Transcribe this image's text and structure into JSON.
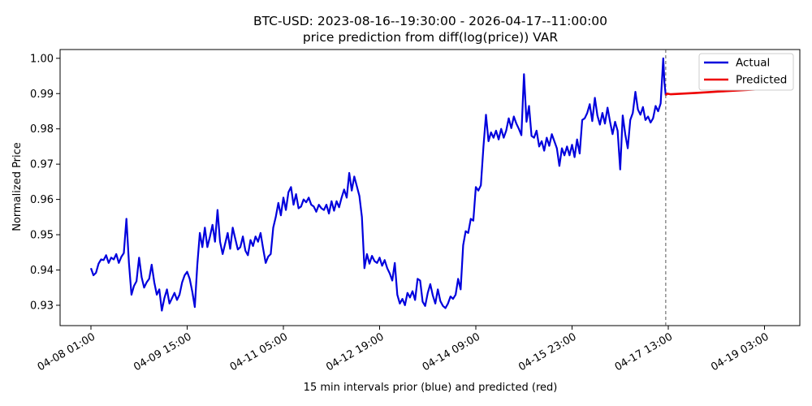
{
  "chart_data": {
    "type": "line",
    "title": "BTC-USD: 2023-08-16--19:30:00 - 2026-04-17--11:00:00",
    "subtitle": "price prediction from diff(log(price)) VAR",
    "xlabel": "15 min intervals prior (blue) and predicted (red)",
    "ylabel": "Normalized Price",
    "ylim": [
      0.9245,
      1.0035
    ],
    "yticks": [
      "0.93",
      "0.94",
      "0.95",
      "0.96",
      "0.97",
      "0.98",
      "0.99",
      "1.00"
    ],
    "xticks": [
      "04-08 01:00",
      "04-09 15:00",
      "04-11 05:00",
      "04-12 19:00",
      "04-14 09:00",
      "04-15 23:00",
      "04-17 13:00",
      "04-19 03:00"
    ],
    "grid": false,
    "legend_position": "top-right",
    "forecast_marker_x": "04-17 12:00",
    "series": [
      {
        "name": "Actual",
        "color": "#0000dd",
        "points": [
          [
            "04-08 01:00",
            0.9405
          ],
          [
            "04-08 02:00",
            0.9385
          ],
          [
            "04-08 03:00",
            0.9392
          ],
          [
            "04-08 04:00",
            0.9418
          ],
          [
            "04-08 05:00",
            0.943
          ],
          [
            "04-08 06:00",
            0.9428
          ],
          [
            "04-08 07:00",
            0.9442
          ],
          [
            "04-08 08:00",
            0.942
          ],
          [
            "04-08 09:00",
            0.9435
          ],
          [
            "04-08 10:00",
            0.943
          ],
          [
            "04-08 11:00",
            0.9445
          ],
          [
            "04-08 12:00",
            0.942
          ],
          [
            "04-08 13:00",
            0.9437
          ],
          [
            "04-08 14:00",
            0.9448
          ],
          [
            "04-08 15:00",
            0.9545
          ],
          [
            "04-08 16:00",
            0.942
          ],
          [
            "04-08 17:00",
            0.933
          ],
          [
            "04-08 18:00",
            0.9355
          ],
          [
            "04-08 19:00",
            0.9368
          ],
          [
            "04-08 20:00",
            0.9435
          ],
          [
            "04-08 21:00",
            0.938
          ],
          [
            "04-08 22:00",
            0.935
          ],
          [
            "04-08 23:00",
            0.9365
          ],
          [
            "04-09 00:00",
            0.9375
          ],
          [
            "04-09 01:00",
            0.9415
          ],
          [
            "04-09 02:00",
            0.9365
          ],
          [
            "04-09 03:00",
            0.933
          ],
          [
            "04-09 04:00",
            0.9345
          ],
          [
            "04-09 05:00",
            0.9285
          ],
          [
            "04-09 06:00",
            0.932
          ],
          [
            "04-09 07:00",
            0.9345
          ],
          [
            "04-09 08:00",
            0.9305
          ],
          [
            "04-09 09:00",
            0.932
          ],
          [
            "04-09 10:00",
            0.9335
          ],
          [
            "04-09 11:00",
            0.9315
          ],
          [
            "04-09 12:00",
            0.933
          ],
          [
            "04-09 13:00",
            0.9365
          ],
          [
            "04-09 14:00",
            0.9385
          ],
          [
            "04-09 15:00",
            0.9395
          ],
          [
            "04-09 16:00",
            0.9375
          ],
          [
            "04-09 17:00",
            0.934
          ],
          [
            "04-09 18:00",
            0.9295
          ],
          [
            "04-09 19:00",
            0.9415
          ],
          [
            "04-09 20:00",
            0.9505
          ],
          [
            "04-09 21:00",
            0.9465
          ],
          [
            "04-09 22:00",
            0.952
          ],
          [
            "04-09 23:00",
            0.9465
          ],
          [
            "04-10 00:00",
            0.9495
          ],
          [
            "04-10 01:00",
            0.9528
          ],
          [
            "04-10 02:00",
            0.948
          ],
          [
            "04-10 03:00",
            0.957
          ],
          [
            "04-10 04:00",
            0.948
          ],
          [
            "04-10 05:00",
            0.9445
          ],
          [
            "04-10 06:00",
            0.9475
          ],
          [
            "04-10 07:00",
            0.9505
          ],
          [
            "04-10 08:00",
            0.946
          ],
          [
            "04-10 09:00",
            0.952
          ],
          [
            "04-10 10:00",
            0.9488
          ],
          [
            "04-10 11:00",
            0.9458
          ],
          [
            "04-10 12:00",
            0.9465
          ],
          [
            "04-10 13:00",
            0.9495
          ],
          [
            "04-10 14:00",
            0.9455
          ],
          [
            "04-10 15:00",
            0.9442
          ],
          [
            "04-10 16:00",
            0.9485
          ],
          [
            "04-10 17:00",
            0.9468
          ],
          [
            "04-10 18:00",
            0.9495
          ],
          [
            "04-10 19:00",
            0.948
          ],
          [
            "04-10 20:00",
            0.9505
          ],
          [
            "04-10 21:00",
            0.946
          ],
          [
            "04-10 22:00",
            0.942
          ],
          [
            "04-10 23:00",
            0.9438
          ],
          [
            "04-11 00:00",
            0.9445
          ],
          [
            "04-11 01:00",
            0.952
          ],
          [
            "04-11 02:00",
            0.955
          ],
          [
            "04-11 03:00",
            0.959
          ],
          [
            "04-11 04:00",
            0.9555
          ],
          [
            "04-11 05:00",
            0.9605
          ],
          [
            "04-11 06:00",
            0.957
          ],
          [
            "04-11 07:00",
            0.962
          ],
          [
            "04-11 08:00",
            0.9635
          ],
          [
            "04-11 09:00",
            0.9585
          ],
          [
            "04-11 10:00",
            0.9615
          ],
          [
            "04-11 11:00",
            0.9575
          ],
          [
            "04-11 12:00",
            0.958
          ],
          [
            "04-11 13:00",
            0.96
          ],
          [
            "04-11 14:00",
            0.9592
          ],
          [
            "04-11 15:00",
            0.9605
          ],
          [
            "04-11 16:00",
            0.9585
          ],
          [
            "04-11 17:00",
            0.958
          ],
          [
            "04-11 18:00",
            0.9565
          ],
          [
            "04-11 19:00",
            0.9585
          ],
          [
            "04-11 20:00",
            0.9575
          ],
          [
            "04-11 21:00",
            0.957
          ],
          [
            "04-11 22:00",
            0.9585
          ],
          [
            "04-11 23:00",
            0.956
          ],
          [
            "04-12 00:00",
            0.9595
          ],
          [
            "04-12 01:00",
            0.9568
          ],
          [
            "04-12 02:00",
            0.9595
          ],
          [
            "04-12 03:00",
            0.9578
          ],
          [
            "04-12 04:00",
            0.9605
          ],
          [
            "04-12 05:00",
            0.9628
          ],
          [
            "04-12 06:00",
            0.9605
          ],
          [
            "04-12 07:00",
            0.9675
          ],
          [
            "04-12 08:00",
            0.9625
          ],
          [
            "04-12 09:00",
            0.9665
          ],
          [
            "04-12 10:00",
            0.9638
          ],
          [
            "04-12 11:00",
            0.961
          ],
          [
            "04-12 12:00",
            0.955
          ],
          [
            "04-12 13:00",
            0.9405
          ],
          [
            "04-12 14:00",
            0.9445
          ],
          [
            "04-12 15:00",
            0.9418
          ],
          [
            "04-12 16:00",
            0.944
          ],
          [
            "04-12 17:00",
            0.9425
          ],
          [
            "04-12 18:00",
            0.942
          ],
          [
            "04-12 19:00",
            0.9435
          ],
          [
            "04-12 20:00",
            0.9412
          ],
          [
            "04-12 21:00",
            0.9428
          ],
          [
            "04-12 22:00",
            0.9405
          ],
          [
            "04-12 23:00",
            0.939
          ],
          [
            "04-13 00:00",
            0.937
          ],
          [
            "04-13 01:00",
            0.942
          ],
          [
            "04-13 02:00",
            0.933
          ],
          [
            "04-13 03:00",
            0.9305
          ],
          [
            "04-13 04:00",
            0.9318
          ],
          [
            "04-13 05:00",
            0.93
          ],
          [
            "04-13 06:00",
            0.9335
          ],
          [
            "04-13 07:00",
            0.9322
          ],
          [
            "04-13 08:00",
            0.934
          ],
          [
            "04-13 09:00",
            0.9315
          ],
          [
            "04-13 10:00",
            0.9375
          ],
          [
            "04-13 11:00",
            0.937
          ],
          [
            "04-13 12:00",
            0.931
          ],
          [
            "04-13 13:00",
            0.9298
          ],
          [
            "04-13 14:00",
            0.9335
          ],
          [
            "04-13 15:00",
            0.936
          ],
          [
            "04-13 16:00",
            0.9328
          ],
          [
            "04-13 17:00",
            0.9305
          ],
          [
            "04-13 18:00",
            0.9345
          ],
          [
            "04-13 19:00",
            0.9312
          ],
          [
            "04-13 20:00",
            0.9298
          ],
          [
            "04-13 21:00",
            0.9292
          ],
          [
            "04-13 22:00",
            0.9305
          ],
          [
            "04-13 23:00",
            0.9325
          ],
          [
            "04-14 00:00",
            0.9318
          ],
          [
            "04-14 01:00",
            0.933
          ],
          [
            "04-14 02:00",
            0.9375
          ],
          [
            "04-14 03:00",
            0.9345
          ],
          [
            "04-14 04:00",
            0.947
          ],
          [
            "04-14 05:00",
            0.951
          ],
          [
            "04-14 06:00",
            0.9505
          ],
          [
            "04-14 07:00",
            0.9545
          ],
          [
            "04-14 08:00",
            0.954
          ],
          [
            "04-14 09:00",
            0.9635
          ],
          [
            "04-14 10:00",
            0.9625
          ],
          [
            "04-14 11:00",
            0.964
          ],
          [
            "04-14 12:00",
            0.975
          ],
          [
            "04-14 13:00",
            0.984
          ],
          [
            "04-14 14:00",
            0.9765
          ],
          [
            "04-14 15:00",
            0.979
          ],
          [
            "04-14 16:00",
            0.9775
          ],
          [
            "04-14 17:00",
            0.9795
          ],
          [
            "04-14 18:00",
            0.977
          ],
          [
            "04-14 19:00",
            0.98
          ],
          [
            "04-14 20:00",
            0.9775
          ],
          [
            "04-14 21:00",
            0.9795
          ],
          [
            "04-14 22:00",
            0.983
          ],
          [
            "04-14 23:00",
            0.9802
          ],
          [
            "04-15 00:00",
            0.9835
          ],
          [
            "04-15 01:00",
            0.9815
          ],
          [
            "04-15 02:00",
            0.98
          ],
          [
            "04-15 03:00",
            0.9782
          ],
          [
            "04-15 04:00",
            0.9955
          ],
          [
            "04-15 05:00",
            0.982
          ],
          [
            "04-15 06:00",
            0.9865
          ],
          [
            "04-15 07:00",
            0.978
          ],
          [
            "04-15 08:00",
            0.9775
          ],
          [
            "04-15 09:00",
            0.9795
          ],
          [
            "04-15 10:00",
            0.975
          ],
          [
            "04-15 11:00",
            0.9765
          ],
          [
            "04-15 12:00",
            0.9738
          ],
          [
            "04-15 13:00",
            0.9775
          ],
          [
            "04-15 14:00",
            0.9752
          ],
          [
            "04-15 15:00",
            0.9785
          ],
          [
            "04-15 16:00",
            0.9765
          ],
          [
            "04-15 17:00",
            0.9745
          ],
          [
            "04-15 18:00",
            0.9695
          ],
          [
            "04-15 19:00",
            0.9745
          ],
          [
            "04-15 20:00",
            0.9725
          ],
          [
            "04-15 21:00",
            0.975
          ],
          [
            "04-15 22:00",
            0.9725
          ],
          [
            "04-15 23:00",
            0.9755
          ],
          [
            "04-16 00:00",
            0.972
          ],
          [
            "04-16 01:00",
            0.977
          ],
          [
            "04-16 02:00",
            0.973
          ],
          [
            "04-16 03:00",
            0.9825
          ],
          [
            "04-16 04:00",
            0.983
          ],
          [
            "04-16 05:00",
            0.9845
          ],
          [
            "04-16 06:00",
            0.987
          ],
          [
            "04-16 07:00",
            0.9822
          ],
          [
            "04-16 08:00",
            0.9888
          ],
          [
            "04-16 09:00",
            0.9838
          ],
          [
            "04-16 10:00",
            0.9812
          ],
          [
            "04-16 11:00",
            0.9845
          ],
          [
            "04-16 12:00",
            0.9815
          ],
          [
            "04-16 13:00",
            0.986
          ],
          [
            "04-16 14:00",
            0.982
          ],
          [
            "04-16 15:00",
            0.9785
          ],
          [
            "04-16 16:00",
            0.982
          ],
          [
            "04-16 17:00",
            0.9795
          ],
          [
            "04-16 18:00",
            0.9685
          ],
          [
            "04-16 19:00",
            0.9838
          ],
          [
            "04-16 20:00",
            0.9785
          ],
          [
            "04-16 21:00",
            0.9745
          ],
          [
            "04-16 22:00",
            0.9825
          ],
          [
            "04-16 23:00",
            0.9845
          ],
          [
            "04-17 00:00",
            0.9905
          ],
          [
            "04-17 01:00",
            0.9855
          ],
          [
            "04-17 02:00",
            0.984
          ],
          [
            "04-17 03:00",
            0.9862
          ],
          [
            "04-17 04:00",
            0.9825
          ],
          [
            "04-17 05:00",
            0.9835
          ],
          [
            "04-17 06:00",
            0.9818
          ],
          [
            "04-17 07:00",
            0.983
          ],
          [
            "04-17 08:00",
            0.9865
          ],
          [
            "04-17 09:00",
            0.985
          ],
          [
            "04-17 10:00",
            0.9872
          ],
          [
            "04-17 11:00",
            1.0
          ],
          [
            "04-17 11:30",
            0.993
          ],
          [
            "04-17 12:00",
            0.9895
          ]
        ]
      },
      {
        "name": "Predicted",
        "color": "#ee0000",
        "points": [
          [
            "04-17 12:00",
            0.9895
          ],
          [
            "04-17 12:30",
            0.99
          ],
          [
            "04-17 14:00",
            0.9898
          ],
          [
            "04-18 00:00",
            0.9902
          ],
          [
            "04-18 12:00",
            0.9907
          ],
          [
            "04-19 03:00",
            0.9913
          ]
        ]
      }
    ]
  }
}
